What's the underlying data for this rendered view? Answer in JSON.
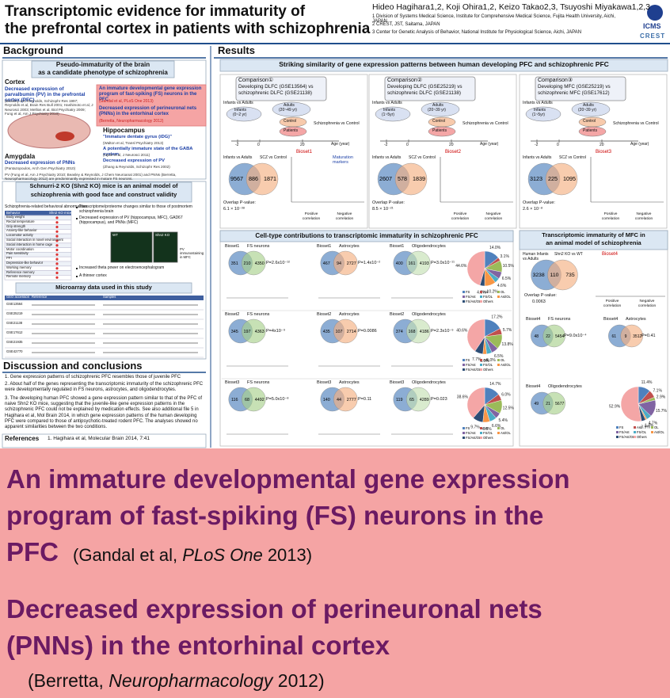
{
  "header": {
    "title": [
      "Transcriptomic evidence for immaturity of",
      "the prefrontal cortex in patients with schizophrenia"
    ],
    "authors": "Hideo Hagihara1,2, Koji Ohira1,2, Keizo Takao2,3, Tsuyoshi Miyakawa1,2,3",
    "affiliations": [
      "1 Division of Systems Medical Science, Institute for Comprehensive Medical Science, Fujita Health University, Aichi, JAPAN",
      "2 CREST, JST, Saitama, JAPAN",
      "3 Center for Genetic Analysis of Behavior, National Institute for Physiological Science, Aichi, JAPAN"
    ],
    "logo": "ICMS",
    "logo2": "CREST"
  },
  "background": {
    "heading": "Background",
    "box1_title": [
      "Pseudo-immaturity of the brain",
      "as a candidate phenotype of schizophrenia"
    ],
    "cortex": "Cortex",
    "cortex_finding": "Decreased expression of parvalbumin (PV) in the prefrontal cortex (PFC)",
    "cortex_refs": "(Beasley and Reynolds, Schizophr Res 1997; Reynolds et al, Brain Res Bull 2001; Hashimoto et al, J Neurosci 2003; Mellios et al, Biol Psychiatry 2009; Fung et al, Am J Psychiatry 2010)",
    "highlight": [
      "An immature developmental gene expression program of fast-spiking (FS) neurons in the PFC",
      "(Gandal et al, PLoS One 2013)",
      "Decreased expression of perineuronal nets (PNNs) in the entorhinal cortex",
      "(Berretta, Neuropharmacology 2012)"
    ],
    "hippocampus": "Hippocampus",
    "hippocampus_lines": [
      "\"Immature dentate gyrus (iDG)\"",
      "(Walton et al, Transl Psychiatry 2013)",
      "A potentially immature state of the GABA system",
      "(Hyde et al, J Neurosci 2011)",
      "Decreased expression of PV",
      "(Zhang & Reynolds, Schizophr Res 2002)"
    ],
    "amygdala": "Amygdala",
    "amygdala_finding": "Decreased expression of PNNs",
    "amygdala_ref": "(Pantazopoulos, Arch Gen Psychiatry 2010)",
    "pv_note": "PV (Fung et al, Am J Psychiatry 2010; Beasley & Reynolds, J Chem Neuroanat 2001) and PNNs (Berretta, Neuropharmacology 2012) are predominantly expressed in mature FS neurons.",
    "box2_title": [
      "Schnurri-2 KO (Shn2 KO) mice is an animal model of",
      "schizophrenia with good face and construct validity"
    ],
    "behavior_heading": "Schizophrenia-related behavioral abnormalities",
    "behavior_columns": [
      "Behavior",
      "Shn2 KO mice"
    ],
    "behaviors": [
      "Body weight",
      "Rectal temperature",
      "Grip strength",
      "Anxiety-like behavior",
      "Locomotor activity",
      "Social interaction in novel environment",
      "Social interaction in home cage",
      "Motor coordination",
      "Pain sensitivity",
      "PPI",
      "Depression-like behavior",
      "Working memory",
      "Reference memory",
      "Remote memory"
    ],
    "mouse_bullets": [
      "Transcriptome/proteome changes similar to those of postmortem schizophrenia brain",
      "Decreased expression of PV (hippocampus, MFC), GAD67 (hippocampus), and PNNs (MFC)",
      "Increased theta power on electroencephalogram",
      "A thinner cortex"
    ],
    "image_labels": [
      "WT",
      "Shn2 KO",
      "PV immunostaining in MFC"
    ],
    "microarray_title": "Microarray data used in this study",
    "microarray_columns": [
      "GEO accession",
      "Reference",
      "Samples"
    ],
    "microarray_accessions": [
      "GSE13564",
      "GSE25219",
      "GSE21138",
      "GSE17612",
      "GSE21935",
      "GSE42770"
    ]
  },
  "discussion": {
    "heading": "Discussion and conclusions",
    "items": [
      "1. Gene expression patterns of schizophrenic PFC resembles those of juvenile PFC",
      "2. About half of the genes representing the transcriptomic immaturity of the schizophrenic PFC were developmentally regulated in FS neurons, astrocytes, and oligodendrocytes.",
      "3. The developing human PFC showed a gene expression pattern similar to that of the PFC of naive Shn2 KO mice, suggesting that the juvenile-like gene expression patterns in the schizophrenic PFC could not be explained by medication effects. See also additional file 5 in Hagihara et al, Mol Brain 2014, in which gene expression patterns of the human developing PFC were compared to those of antipsychotic-treated rodent PFC. The analyses showed no apparent similarities between the two conditions."
    ],
    "references_heading": "References",
    "references": [
      "1. Hagihara et al, Molecular Brain 2014, 7:41"
    ]
  },
  "results": {
    "heading": "Results",
    "banner": "Striking similarity of gene expression patterns between human developing PFC and schizophrenic PFC",
    "maturation_markers": "Maturation markers",
    "comparisons": [
      {
        "label": "Comparison①",
        "lines": [
          "Developing DLFC (GSE13564) vs",
          "schizophrenic DLFC (GSE21138)"
        ],
        "contrast": "Infants vs Adults",
        "infants": [
          "Infants",
          "(0~2 yr)"
        ],
        "adults": [
          "Adults",
          "(20~49 yr)"
        ],
        "control": "Control",
        "patients": "Patients",
        "scz": "Schizophrenia vs Control",
        "axis": "Age (year)",
        "ticks": [
          "-2",
          "0",
          "20"
        ],
        "venn_labels": [
          "Infants vs Adults",
          "SCZ vs Control"
        ],
        "venn": [
          9567,
          886,
          1871
        ],
        "overlap_label": "Overlap P-value:",
        "overlap": "6.1 × 10⁻³⁸",
        "bioset": "Bioset1",
        "pos": "Positive correlation",
        "neg": "Negative correlation"
      },
      {
        "label": "Comparison②",
        "lines": [
          "Developing DLFC (GSE25219) vs",
          "schizophrenic DLFC (GSE21138)"
        ],
        "contrast": "Infants vs Adults",
        "infants": [
          "Infants",
          "(1~5yr)"
        ],
        "adults": [
          "Adults",
          "(20~39 yr)"
        ],
        "control": "Control",
        "patients": "Patients",
        "scz": "Schizophrenia vs Control",
        "axis": "Age (year)",
        "ticks": [
          "-2",
          "0",
          "20"
        ],
        "venn_labels": [
          "Infants vs Adults",
          "SCZ vs Control"
        ],
        "venn": [
          2607,
          578,
          1839
        ],
        "overlap_label": "Overlap P-value:",
        "overlap": "8.5 × 10⁻²¹",
        "bioset": "Bioset2",
        "pos": "Positive correlation",
        "neg": "Negative correlation"
      },
      {
        "label": "Comparison③",
        "lines": [
          "Developing MFC (GSE25219) vs",
          "schizophrenic MFC (GSE17612)"
        ],
        "contrast": "Infants vs Adults",
        "infants": [
          "Infants",
          "(1~5yr)"
        ],
        "adults": [
          "Adults",
          "(20~39 yr)"
        ],
        "control": "Control",
        "patients": "Patients",
        "scz": "Schizophrenia vs Control",
        "axis": "Age (year)",
        "ticks": [
          "-2",
          "0",
          "20"
        ],
        "venn_labels": [
          "Infants vs Adults",
          "SCZ vs Control"
        ],
        "venn": [
          3123,
          225,
          1095
        ],
        "overlap_label": "Overlap P-value:",
        "overlap": "2.6 × 10⁻⁸",
        "bioset": "Bioset3",
        "pos": "Positive correlation",
        "neg": "Negative correlation"
      }
    ],
    "celltype_title": "Cell-type contributions to transcriptomic immaturity in schizophrenic PFC",
    "celltype_rows": [
      {
        "bioset": "Bioset1",
        "cells": [
          {
            "name": "FS neurons",
            "venn": [
              351,
              210,
              4350
            ],
            "p": "P=2.6x10⁻¹²"
          },
          {
            "name": "Astrocytes",
            "venn": [
              467,
              94,
              2727
            ],
            "p": "P=1.4x10⁻²"
          },
          {
            "name": "Oligodendrocytes",
            "venn": [
              400,
              161,
              4193
            ],
            "p": "P=3.0x10⁻¹¹"
          }
        ]
      },
      {
        "bioset": "Bioset2",
        "cells": [
          {
            "name": "FS neurons",
            "venn": [
              345,
              197,
              4363
            ],
            "p": "P=4x10⁻⁹"
          },
          {
            "name": "Astrocytes",
            "venn": [
              435,
              107,
              2714
            ],
            "p": "P=0.0086"
          },
          {
            "name": "Oligodendrocytes",
            "venn": [
              374,
              168,
              4186
            ],
            "p": "P=2.3x10⁻⁹"
          }
        ]
      },
      {
        "bioset": "Bioset3",
        "cells": [
          {
            "name": "FS neurons",
            "venn": [
              116,
              68,
              4492
            ],
            "p": "P=5.0x10⁻⁸"
          },
          {
            "name": "Astrocytes",
            "venn": [
              140,
              44,
              2777
            ],
            "p": "P=0.11"
          },
          {
            "name": "Oligodendrocytes",
            "venn": [
              119,
              65,
              4289
            ],
            "p": "P=0.023"
          }
        ]
      }
    ],
    "mouse_title": [
      "Transcriptomic immaturity of MFC in",
      "an animal model of schizophrenia"
    ],
    "mouse_venn_labels": [
      "Human Infants vs Adults",
      "Shn2 KO vs WT"
    ],
    "mouse_venn": [
      3238,
      110,
      735
    ],
    "mouse_overlap_label": "Overlap P-value:",
    "mouse_overlap": "0.0063",
    "mouse_bioset": "Bioset4",
    "mouse_pos": "Positive correlation",
    "mouse_neg": "Negative correlation",
    "mouse_cells": [
      {
        "bioset": "Bioset4",
        "name": "FS neurons",
        "venn": [
          48,
          22,
          5454
        ],
        "p": "P=9.0x10⁻⁴"
      },
      {
        "bioset": "Bioset4",
        "name": "Astrocytes",
        "venn": [
          61,
          9,
          3512
        ],
        "p": "P=0.41"
      },
      {
        "bioset": "Bioset4",
        "name": "Oligodendrocytes",
        "venn": [
          49,
          21,
          5677
        ]
      }
    ]
  },
  "chart_data": [
    {
      "type": "pie",
      "categories": [
        "FS",
        "Ast",
        "OL",
        "FS/Ast",
        "FS/OL",
        "Ast/OL",
        "FS/Ast/OL",
        "Others"
      ],
      "colors": [
        "#4f81bd",
        "#c0504d",
        "#9bbb59",
        "#8064a2",
        "#4bacc6",
        "#f79646",
        "#2c4d75",
        "#f4a6a6"
      ],
      "values": [
        14.0,
        3.1,
        10.5,
        6.5,
        4.6,
        10.2,
        4.3,
        44.6
      ],
      "value_labels": [
        "14.0%",
        "3.1%",
        "10.5%",
        "6.5%",
        "4.6%",
        "10.2%",
        "4.3%",
        "44.6%"
      ]
    },
    {
      "type": "pie",
      "categories": [
        "FS",
        "Ast",
        "OL",
        "FS/Ast",
        "FS/OL",
        "Ast/OL",
        "FS/Ast/OL",
        "Others"
      ],
      "colors": [
        "#4f81bd",
        "#c0504d",
        "#9bbb59",
        "#8064a2",
        "#4bacc6",
        "#f79646",
        "#2c4d75",
        "#f4a6a6"
      ],
      "values": [
        17.2,
        5.7,
        13.8,
        6.5,
        5.0,
        3.5,
        7.7,
        40.6
      ],
      "value_labels": [
        "17.2%",
        "5.7%",
        "13.8%",
        "6.5%",
        "5.0%",
        "3.5%",
        "7.7%",
        "40.6%"
      ]
    },
    {
      "type": "pie",
      "categories": [
        "FS",
        "Ast",
        "OL",
        "FS/Ast",
        "FS/OL",
        "Ast/OL",
        "FS/Ast/OL",
        "Others"
      ],
      "colors": [
        "#4f81bd",
        "#c0504d",
        "#9bbb59",
        "#8064a2",
        "#4bacc6",
        "#f79646",
        "#2c4d75",
        "#f4a6a6"
      ],
      "values": [
        14.7,
        6.0,
        12.5,
        5.4,
        6.6,
        6.5,
        9.7,
        38.6
      ],
      "value_labels": [
        "14.7%",
        "6.0%",
        "12.5%",
        "5.4%",
        "6.6%",
        "6.5%",
        "9.7%",
        "38.6%"
      ]
    },
    {
      "type": "pie",
      "categories": [
        "FS",
        "Ast",
        "OL",
        "FS/Ast",
        "FS/OL",
        "Ast/OL",
        "FS/Ast/OL",
        "Others"
      ],
      "colors": [
        "#4f81bd",
        "#c0504d",
        "#9bbb59",
        "#8064a2",
        "#4bacc6",
        "#f79646",
        "#2c4d75",
        "#f4a6a6"
      ],
      "values": [
        11.4,
        7.1,
        2.9,
        15.7,
        4.7,
        1.4,
        3.9,
        52.9
      ],
      "value_labels": [
        "11.4%",
        "7.1%",
        "2.9%",
        "15.7%",
        "4.7%",
        "1.4%",
        "3.9%",
        "52.9%"
      ]
    }
  ],
  "zoom": {
    "block1": [
      "An immature developmental gene expression",
      "program of fast-spiking (FS) neurons in the",
      "PFC"
    ],
    "cite1": [
      "(Gandal et al, ",
      "PLoS One",
      " 2013)"
    ],
    "block2": [
      "Decreased expression of perineuronal nets",
      "(PNNs) in the entorhinal cortex"
    ],
    "cite2": [
      "(Berretta, ",
      "Neuropharmacology",
      " 2012)"
    ]
  }
}
